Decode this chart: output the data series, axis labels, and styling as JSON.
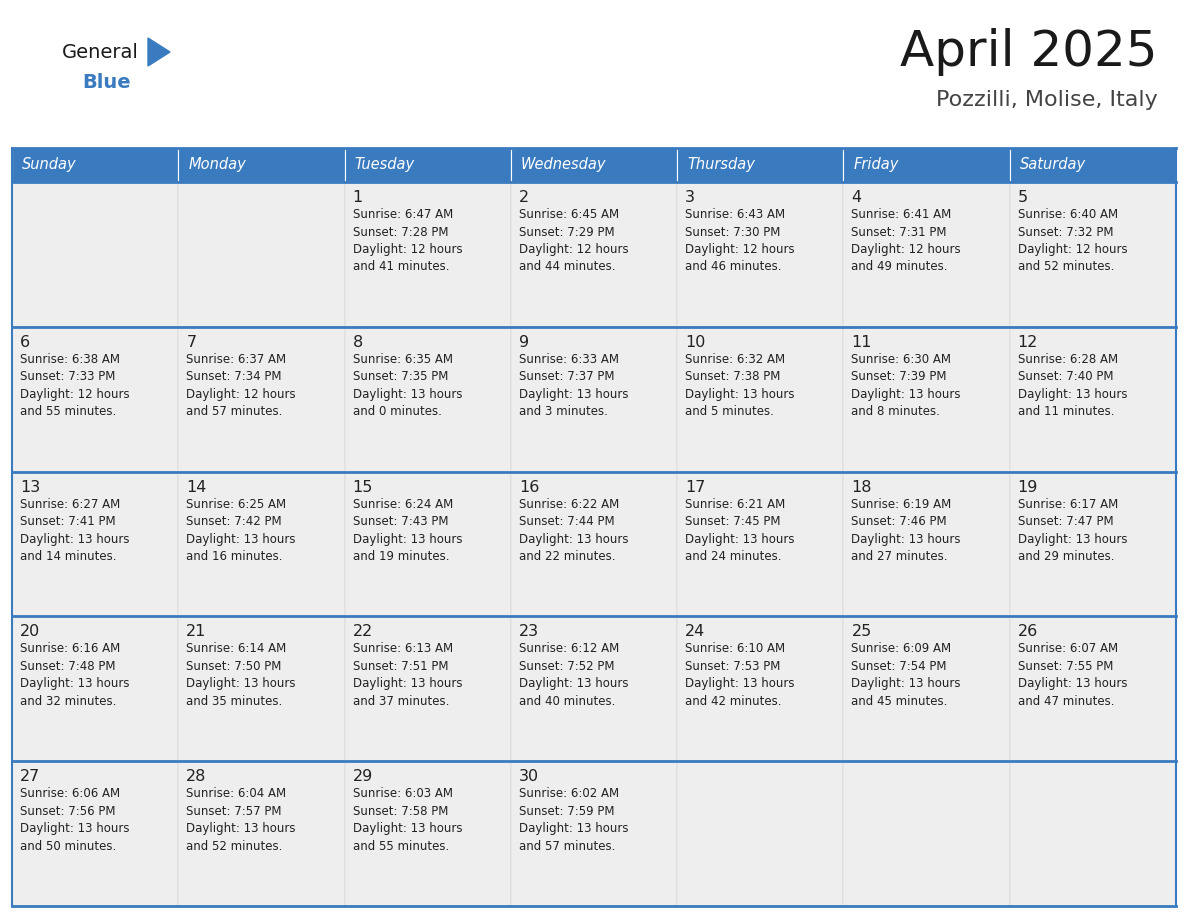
{
  "title": "April 2025",
  "subtitle": "Pozzilli, Molise, Italy",
  "header_bg_color": "#3a7bbf",
  "header_text_color": "#ffffff",
  "header_font_size": 10.5,
  "day_names": [
    "Sunday",
    "Monday",
    "Tuesday",
    "Wednesday",
    "Thursday",
    "Friday",
    "Saturday"
  ],
  "cell_bg_color": "#eeeeee",
  "cell_text_color": "#222222",
  "border_color": "#3a7bbf",
  "row_divider_color": "#3a7bbf",
  "logo_general_color": "#1a1a1a",
  "logo_blue_color": "#3a7bbf",
  "logo_triangle_color": "#3a7bbf",
  "title_color": "#1a1a1a",
  "subtitle_color": "#444444",
  "calendar": [
    [
      "",
      "",
      "1\nSunrise: 6:47 AM\nSunset: 7:28 PM\nDaylight: 12 hours\nand 41 minutes.",
      "2\nSunrise: 6:45 AM\nSunset: 7:29 PM\nDaylight: 12 hours\nand 44 minutes.",
      "3\nSunrise: 6:43 AM\nSunset: 7:30 PM\nDaylight: 12 hours\nand 46 minutes.",
      "4\nSunrise: 6:41 AM\nSunset: 7:31 PM\nDaylight: 12 hours\nand 49 minutes.",
      "5\nSunrise: 6:40 AM\nSunset: 7:32 PM\nDaylight: 12 hours\nand 52 minutes."
    ],
    [
      "6\nSunrise: 6:38 AM\nSunset: 7:33 PM\nDaylight: 12 hours\nand 55 minutes.",
      "7\nSunrise: 6:37 AM\nSunset: 7:34 PM\nDaylight: 12 hours\nand 57 minutes.",
      "8\nSunrise: 6:35 AM\nSunset: 7:35 PM\nDaylight: 13 hours\nand 0 minutes.",
      "9\nSunrise: 6:33 AM\nSunset: 7:37 PM\nDaylight: 13 hours\nand 3 minutes.",
      "10\nSunrise: 6:32 AM\nSunset: 7:38 PM\nDaylight: 13 hours\nand 5 minutes.",
      "11\nSunrise: 6:30 AM\nSunset: 7:39 PM\nDaylight: 13 hours\nand 8 minutes.",
      "12\nSunrise: 6:28 AM\nSunset: 7:40 PM\nDaylight: 13 hours\nand 11 minutes."
    ],
    [
      "13\nSunrise: 6:27 AM\nSunset: 7:41 PM\nDaylight: 13 hours\nand 14 minutes.",
      "14\nSunrise: 6:25 AM\nSunset: 7:42 PM\nDaylight: 13 hours\nand 16 minutes.",
      "15\nSunrise: 6:24 AM\nSunset: 7:43 PM\nDaylight: 13 hours\nand 19 minutes.",
      "16\nSunrise: 6:22 AM\nSunset: 7:44 PM\nDaylight: 13 hours\nand 22 minutes.",
      "17\nSunrise: 6:21 AM\nSunset: 7:45 PM\nDaylight: 13 hours\nand 24 minutes.",
      "18\nSunrise: 6:19 AM\nSunset: 7:46 PM\nDaylight: 13 hours\nand 27 minutes.",
      "19\nSunrise: 6:17 AM\nSunset: 7:47 PM\nDaylight: 13 hours\nand 29 minutes."
    ],
    [
      "20\nSunrise: 6:16 AM\nSunset: 7:48 PM\nDaylight: 13 hours\nand 32 minutes.",
      "21\nSunrise: 6:14 AM\nSunset: 7:50 PM\nDaylight: 13 hours\nand 35 minutes.",
      "22\nSunrise: 6:13 AM\nSunset: 7:51 PM\nDaylight: 13 hours\nand 37 minutes.",
      "23\nSunrise: 6:12 AM\nSunset: 7:52 PM\nDaylight: 13 hours\nand 40 minutes.",
      "24\nSunrise: 6:10 AM\nSunset: 7:53 PM\nDaylight: 13 hours\nand 42 minutes.",
      "25\nSunrise: 6:09 AM\nSunset: 7:54 PM\nDaylight: 13 hours\nand 45 minutes.",
      "26\nSunrise: 6:07 AM\nSunset: 7:55 PM\nDaylight: 13 hours\nand 47 minutes."
    ],
    [
      "27\nSunrise: 6:06 AM\nSunset: 7:56 PM\nDaylight: 13 hours\nand 50 minutes.",
      "28\nSunrise: 6:04 AM\nSunset: 7:57 PM\nDaylight: 13 hours\nand 52 minutes.",
      "29\nSunrise: 6:03 AM\nSunset: 7:58 PM\nDaylight: 13 hours\nand 55 minutes.",
      "30\nSunrise: 6:02 AM\nSunset: 7:59 PM\nDaylight: 13 hours\nand 57 minutes.",
      "",
      "",
      ""
    ]
  ]
}
